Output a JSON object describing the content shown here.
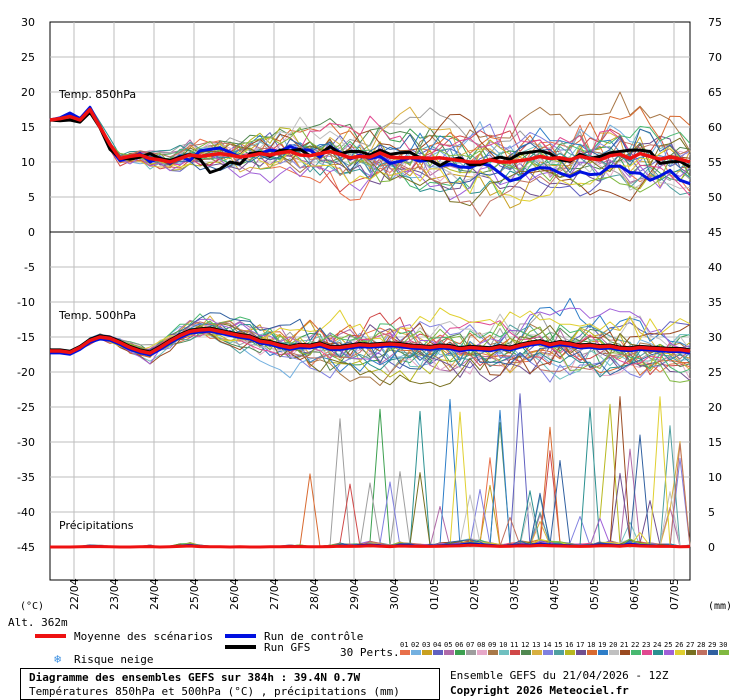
{
  "chart_data": {
    "type": "line",
    "dates": [
      "22/04",
      "23/04",
      "24/04",
      "25/04",
      "26/04",
      "27/04",
      "28/04",
      "29/04",
      "30/04",
      "01/05",
      "02/05",
      "03/05",
      "04/05",
      "05/05",
      "06/05",
      "07/05"
    ],
    "left_ticks": [
      30,
      25,
      20,
      15,
      10,
      5,
      0,
      -5,
      -10,
      -15,
      -20,
      -25,
      -30,
      -35,
      -40,
      -45
    ],
    "right_ticks": [
      75,
      70,
      65,
      60,
      55,
      50,
      45,
      40,
      35,
      30,
      25,
      20,
      15,
      10,
      5,
      0
    ],
    "left_unit": "(°C)",
    "right_unit": "(mm)",
    "altitude": "Alt. 362m",
    "panel_labels": {
      "t850": "Temp. 850hPa",
      "t500": "Temp. 500hPa",
      "precip": "Précipitations"
    },
    "x_start": 0,
    "x_step_hours": 6,
    "n_points": 65,
    "mean_t850": [
      16,
      16.2,
      16.5,
      16,
      17.5,
      15,
      12.5,
      10.5,
      10.8,
      11,
      10.5,
      10.3,
      10,
      10.5,
      11,
      10.8,
      11,
      11.2,
      11,
      10.7,
      10.9,
      11.2,
      11,
      11.3,
      11.5,
      11,
      10.9,
      11.2,
      11.5,
      11.1,
      10.6,
      10.8,
      10.7,
      11.3,
      10.7,
      10.6,
      10.6,
      10.6,
      10.5,
      10.6,
      10.4,
      10.2,
      10,
      10,
      10.3,
      10,
      10,
      10.2,
      10.4,
      10.8,
      10.5,
      10.6,
      10.3,
      10.8,
      10.5,
      10.3,
      10.9,
      11.1,
      10.5,
      11.2,
      10.8,
      10.4,
      10.7,
      10.4,
      10
    ],
    "control_t850": [
      16,
      16.3,
      17,
      16.2,
      17.8,
      15.1,
      12,
      10.2,
      10.6,
      11.2,
      10,
      10.6,
      9.8,
      10.8,
      10.2,
      11.6,
      11.8,
      12,
      11.4,
      10.7,
      10.9,
      11.2,
      11.7,
      11.5,
      12.2,
      11.7,
      11.7,
      10.7,
      12.2,
      11.4,
      10.4,
      11,
      10.5,
      10.8,
      9.8,
      10.1,
      10.6,
      10.1,
      10.3,
      9.4,
      9.7,
      9.3,
      9.2,
      9.8,
      9.5,
      8.4,
      7.3,
      7.7,
      8.8,
      9.2,
      9.1,
      8.4,
      7.9,
      8.6,
      8.2,
      8.3,
      9.4,
      9.4,
      8.5,
      8.4,
      7.4,
      8,
      8.8,
      7.4,
      6.9
    ],
    "gfs_t850": [
      16,
      15.9,
      16,
      15.7,
      17.1,
      14.9,
      11.8,
      10.6,
      10.4,
      10.7,
      11.2,
      10.5,
      10.2,
      10.7,
      11.1,
      10.4,
      8.5,
      9,
      10,
      9.7,
      11.2,
      11.4,
      10.8,
      11.7,
      11.6,
      11.8,
      10.9,
      11.2,
      12.2,
      11.2,
      11.5,
      11.5,
      11,
      11.7,
      11.1,
      11.3,
      11.4,
      10.6,
      10.2,
      9.5,
      10.3,
      10.6,
      9.6,
      9.6,
      10.3,
      10.7,
      10.4,
      11.2,
      11.4,
      11.6,
      11.2,
      10.3,
      10.1,
      11.1,
      10.5,
      10.8,
      11.3,
      11.5,
      11.7,
      11.7,
      11.5,
      9.8,
      10,
      10.1,
      9.3
    ],
    "mean_t500": [
      -17,
      -17,
      -17.2,
      -16.5,
      -15.5,
      -15,
      -15.2,
      -15.8,
      -16.5,
      -17,
      -17.3,
      -16.5,
      -15.6,
      -14.8,
      -14.2,
      -14,
      -13.9,
      -14.2,
      -14.5,
      -14.8,
      -15,
      -15.6,
      -15.8,
      -16.2,
      -16.5,
      -16.2,
      -16.3,
      -16,
      -16.5,
      -16.5,
      -16.3,
      -16.1,
      -16.2,
      -16.1,
      -16,
      -16.1,
      -16.3,
      -16.4,
      -16.5,
      -16.3,
      -16.4,
      -16.7,
      -16.5,
      -16.6,
      -16.7,
      -16.4,
      -16.6,
      -16.2,
      -15.9,
      -15.7,
      -16.1,
      -15.8,
      -16,
      -16.3,
      -16.2,
      -16.4,
      -16.3,
      -16.6,
      -16.7,
      -16.5,
      -16.6,
      -16.7,
      -16.8,
      -16.8,
      -17
    ],
    "precip_mm": [
      0,
      0,
      0,
      0.1,
      0.2,
      0.2,
      0.1,
      0,
      0,
      0.1,
      0.2,
      0,
      0.1,
      0.3,
      0.5,
      0.2,
      0.1,
      0.1,
      0,
      0.1,
      0,
      0,
      0.1,
      0.1,
      0.2,
      0.2,
      0.1,
      0.1,
      0.2,
      0.4,
      0.3,
      0.4,
      0.6,
      0.4,
      0.2,
      0.5,
      0.4,
      0.3,
      0.3,
      0.4,
      0.5,
      0.6,
      0.9,
      0.7,
      0.5,
      0.3,
      0.4,
      0.6,
      0.5,
      0.8,
      0.6,
      0.5,
      0.4,
      0.3,
      0.4,
      0.6,
      0.6,
      0.4,
      0.8,
      0.5,
      0.4,
      0.3,
      0.3,
      0.1,
      0.2
    ]
  },
  "legend": {
    "mean": "Moyenne des scénarios",
    "control": "Run de contrôle",
    "gfs": "Run GFS",
    "snow": "Risque neige",
    "perts": "30 Perts.",
    "pert_colors": [
      "#e8704a",
      "#73b0e0",
      "#c8a020",
      "#6060c0",
      "#b06aa8",
      "#3ca050",
      "#9e9e9e",
      "#e6a8c8",
      "#a87848",
      "#70c0c0",
      "#d04848",
      "#508850",
      "#d8b040",
      "#8080e0",
      "#50a0a0",
      "#b8b820",
      "#705090",
      "#d86a30",
      "#2e7ec8",
      "#c0c0c0",
      "#9a4a20",
      "#48b870",
      "#e04890",
      "#2a9090",
      "#a060d8",
      "#e0d030",
      "#787020",
      "#c07060",
      "#3060a0",
      "#80b840"
    ]
  },
  "footer": {
    "title": "Diagramme des ensembles GEFS sur 384h : 39.4N 0.7W",
    "subtitle": "Températures 850hPa et 500hPa (°C) , précipitations (mm)",
    "run": "Ensemble GEFS du 21/04/2026 - 12Z",
    "copyright": "Copyright 2026 Meteociel.fr"
  }
}
